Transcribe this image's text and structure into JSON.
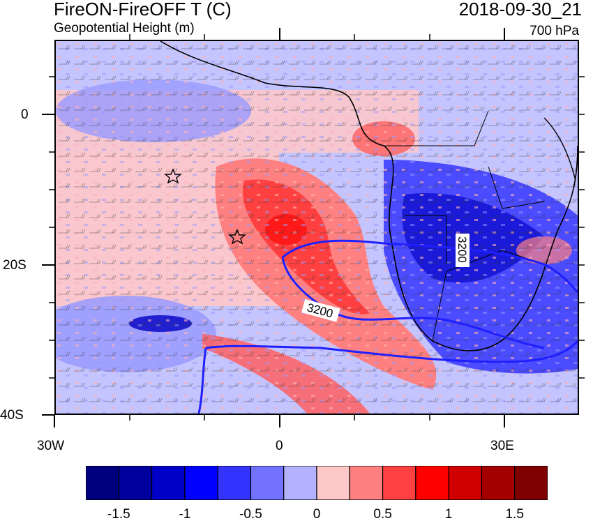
{
  "figure": {
    "title": "FireON-FireOFF T (C)",
    "subtitle": "Geopotential Height (m)",
    "date": "2018-09-30_21",
    "level": "700 hPa"
  },
  "map": {
    "projection": "cylindrical equidistant",
    "lon_range": [
      -30,
      40
    ],
    "lat_range": [
      -40,
      10
    ],
    "x_tick_labels": [
      "30W",
      "0",
      "30E"
    ],
    "y_tick_labels": [
      "0",
      "20S",
      "40S"
    ],
    "contour_labels": [
      "3200",
      "3200"
    ],
    "contour_color": "#1f1fff",
    "markers": [
      "star",
      "star"
    ],
    "marker_icon": "star-icon",
    "overlay": "wind-barbs"
  },
  "colorbar": {
    "colors": [
      "#00007f",
      "#00009f",
      "#0000c8",
      "#0000ff",
      "#3434ff",
      "#7272ff",
      "#b2b2ff",
      "#ffc8c8",
      "#ff8080",
      "#ff4040",
      "#ff0000",
      "#d00000",
      "#a40000",
      "#7f0000"
    ],
    "tick_labels": [
      "-1.5",
      "-1",
      "-0.5",
      "0",
      "0.5",
      "1",
      "1.5"
    ]
  }
}
